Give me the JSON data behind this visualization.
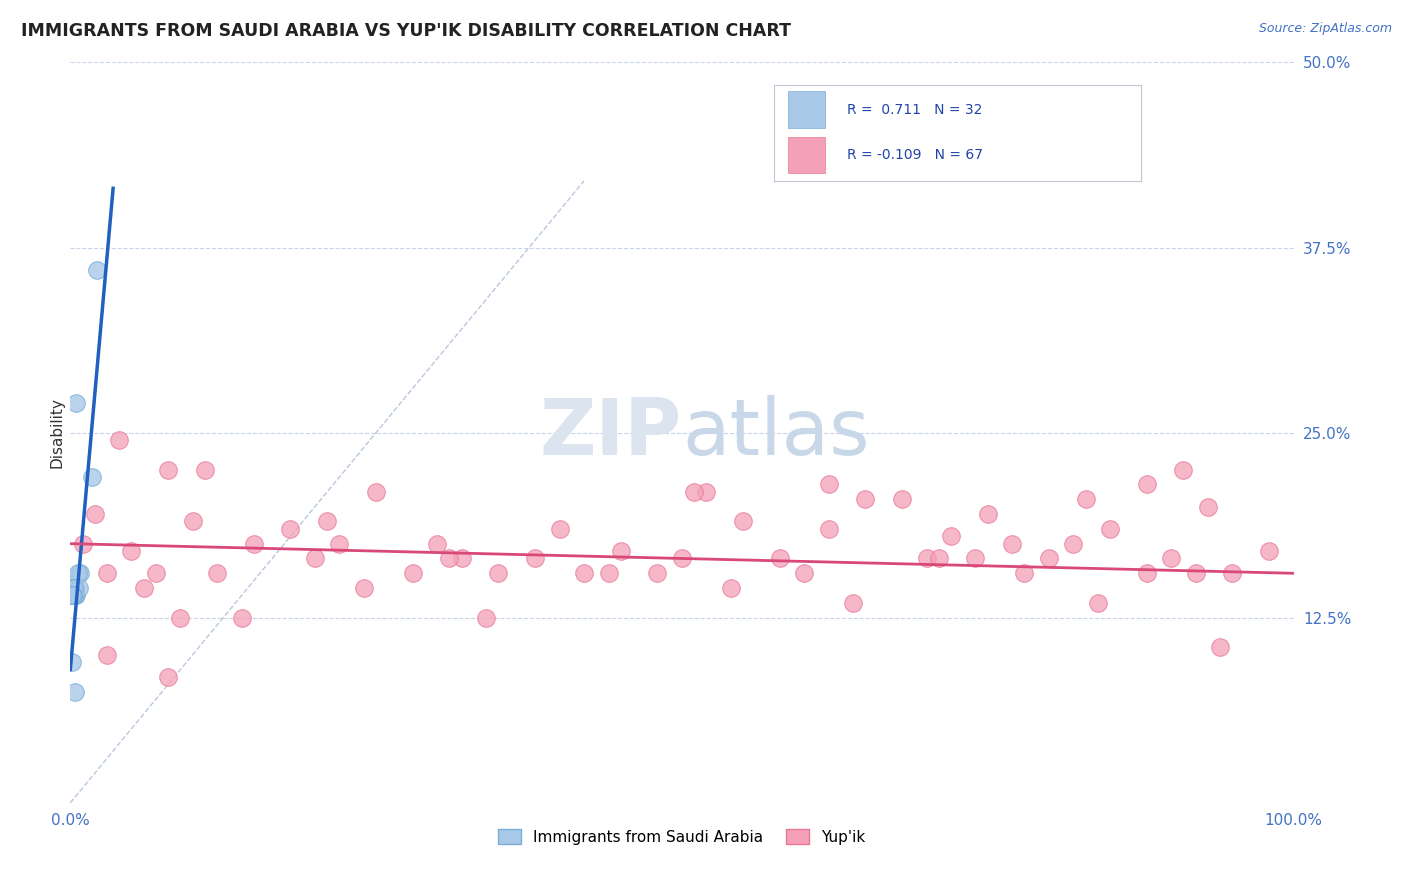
{
  "title": "IMMIGRANTS FROM SAUDI ARABIA VS YUP'IK DISABILITY CORRELATION CHART",
  "source_text": "Source: ZipAtlas.com",
  "ylabel": "Disability",
  "xlim": [
    0.0,
    1.0
  ],
  "ylim": [
    0.0,
    0.5
  ],
  "yticks": [
    0.125,
    0.25,
    0.375,
    0.5
  ],
  "ytick_labels": [
    "12.5%",
    "25.0%",
    "37.5%",
    "50.0%"
  ],
  "legend_r1": "R =  0.711   N = 32",
  "legend_r2": "R = -0.109   N = 67",
  "legend_label1": "Immigrants from Saudi Arabia",
  "legend_label2": "Yup'ik",
  "blue_color": "#a8c8e8",
  "pink_color": "#f4a0b8",
  "blue_edge": "#7aafd4",
  "pink_edge": "#e87898",
  "trend_blue": "#2060c0",
  "trend_pink": "#d84878",
  "background_color": "#ffffff",
  "grid_color": "#c8d4e8",
  "watermark_color": "#dce4f0",
  "blue_scatter_x": [
    0.005,
    0.008,
    0.004,
    0.003,
    0.002,
    0.001,
    0.006,
    0.003,
    0.002,
    0.004,
    0.005,
    0.003,
    0.002,
    0.001,
    0.003,
    0.004,
    0.002,
    0.001,
    0.002,
    0.003,
    0.004,
    0.002,
    0.001,
    0.002,
    0.007,
    0.022,
    0.018,
    0.003,
    0.002,
    0.001,
    0.001,
    0.004
  ],
  "blue_scatter_y": [
    0.27,
    0.155,
    0.145,
    0.145,
    0.14,
    0.14,
    0.155,
    0.145,
    0.145,
    0.14,
    0.14,
    0.145,
    0.145,
    0.14,
    0.14,
    0.145,
    0.14,
    0.14,
    0.145,
    0.145,
    0.14,
    0.145,
    0.14,
    0.145,
    0.145,
    0.36,
    0.22,
    0.145,
    0.14,
    0.14,
    0.095,
    0.075
  ],
  "pink_scatter_x": [
    0.01,
    0.02,
    0.03,
    0.05,
    0.08,
    0.07,
    0.1,
    0.12,
    0.15,
    0.18,
    0.2,
    0.22,
    0.25,
    0.28,
    0.3,
    0.32,
    0.35,
    0.38,
    0.4,
    0.42,
    0.45,
    0.48,
    0.5,
    0.52,
    0.55,
    0.58,
    0.6,
    0.62,
    0.65,
    0.68,
    0.7,
    0.72,
    0.75,
    0.78,
    0.8,
    0.82,
    0.85,
    0.88,
    0.9,
    0.92,
    0.95,
    0.98,
    0.03,
    0.06,
    0.09,
    0.14,
    0.24,
    0.34,
    0.44,
    0.54,
    0.64,
    0.74,
    0.84,
    0.94,
    0.11,
    0.21,
    0.31,
    0.51,
    0.71,
    0.91,
    0.04,
    0.08,
    0.77,
    0.83,
    0.62,
    0.88,
    0.93
  ],
  "pink_scatter_y": [
    0.175,
    0.195,
    0.155,
    0.17,
    0.225,
    0.155,
    0.19,
    0.155,
    0.175,
    0.185,
    0.165,
    0.175,
    0.21,
    0.155,
    0.175,
    0.165,
    0.155,
    0.165,
    0.185,
    0.155,
    0.17,
    0.155,
    0.165,
    0.21,
    0.19,
    0.165,
    0.155,
    0.185,
    0.205,
    0.205,
    0.165,
    0.18,
    0.195,
    0.155,
    0.165,
    0.175,
    0.185,
    0.155,
    0.165,
    0.155,
    0.155,
    0.17,
    0.1,
    0.145,
    0.125,
    0.125,
    0.145,
    0.125,
    0.155,
    0.145,
    0.135,
    0.165,
    0.135,
    0.105,
    0.225,
    0.19,
    0.165,
    0.21,
    0.165,
    0.225,
    0.245,
    0.085,
    0.175,
    0.205,
    0.215,
    0.215,
    0.2
  ],
  "blue_trendline_x": [
    0.0,
    0.035
  ],
  "blue_trendline_y": [
    0.09,
    0.415
  ],
  "pink_trendline_x": [
    0.0,
    1.0
  ],
  "pink_trendline_y": [
    0.175,
    0.155
  ],
  "diag_line_x": [
    0.0,
    0.42
  ],
  "diag_line_y": [
    0.0,
    0.42
  ]
}
